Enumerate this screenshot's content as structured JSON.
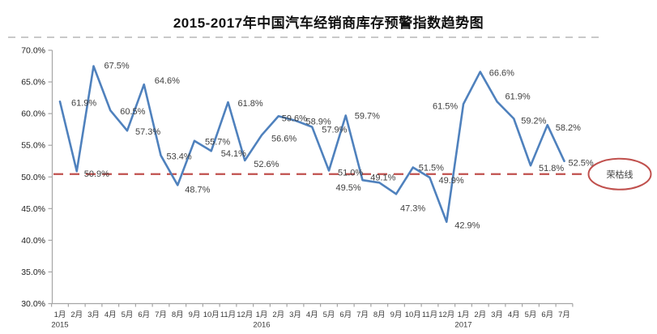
{
  "title": "2015-2017年中国汽车经销商库存预警指数趋势图",
  "chart_data": {
    "type": "line",
    "title": "2015-2017年中国汽车经销商库存预警指数趋势图",
    "x_categories": [
      "1月",
      "2月",
      "3月",
      "4月",
      "5月",
      "6月",
      "7月",
      "8月",
      "9月",
      "10月",
      "11月",
      "12月",
      "1月",
      "2月",
      "3月",
      "4月",
      "5月",
      "6月",
      "7月",
      "8月",
      "9月",
      "10月",
      "11月",
      "12月",
      "1月",
      "2月",
      "3月",
      "4月",
      "5月",
      "6月",
      "7月"
    ],
    "year_labels": [
      {
        "index": 0,
        "label": "2015"
      },
      {
        "index": 12,
        "label": "2016"
      },
      {
        "index": 24,
        "label": "2017"
      }
    ],
    "values": [
      61.9,
      50.9,
      67.5,
      60.5,
      57.3,
      64.6,
      53.4,
      48.7,
      55.7,
      54.1,
      61.8,
      52.6,
      56.6,
      59.6,
      58.9,
      57.9,
      51.0,
      59.7,
      49.5,
      49.1,
      47.3,
      51.5,
      49.9,
      42.9,
      61.5,
      66.6,
      61.9,
      59.2,
      51.8,
      58.2,
      52.5
    ],
    "value_suffix": "%",
    "ylim": [
      30,
      70
    ],
    "ytick_step": 5,
    "ytick_labels": [
      "70.0%",
      "65.0%",
      "60.0%",
      "55.0%",
      "50.0%",
      "45.0%",
      "40.0%",
      "35.0%",
      "30.0%"
    ],
    "threshold": {
      "value": 50,
      "label": "荣枯线"
    },
    "data_labels": true,
    "grid": false,
    "legend": "none",
    "colors": {
      "line": "#4F81BD",
      "threshold": "#C0504D",
      "axis": "#A6A6A6",
      "tick_text": "#1F1F1F",
      "data_label_text": "#3F3F3F",
      "title_text": "#111111",
      "divider": "#C9C9C9"
    }
  }
}
